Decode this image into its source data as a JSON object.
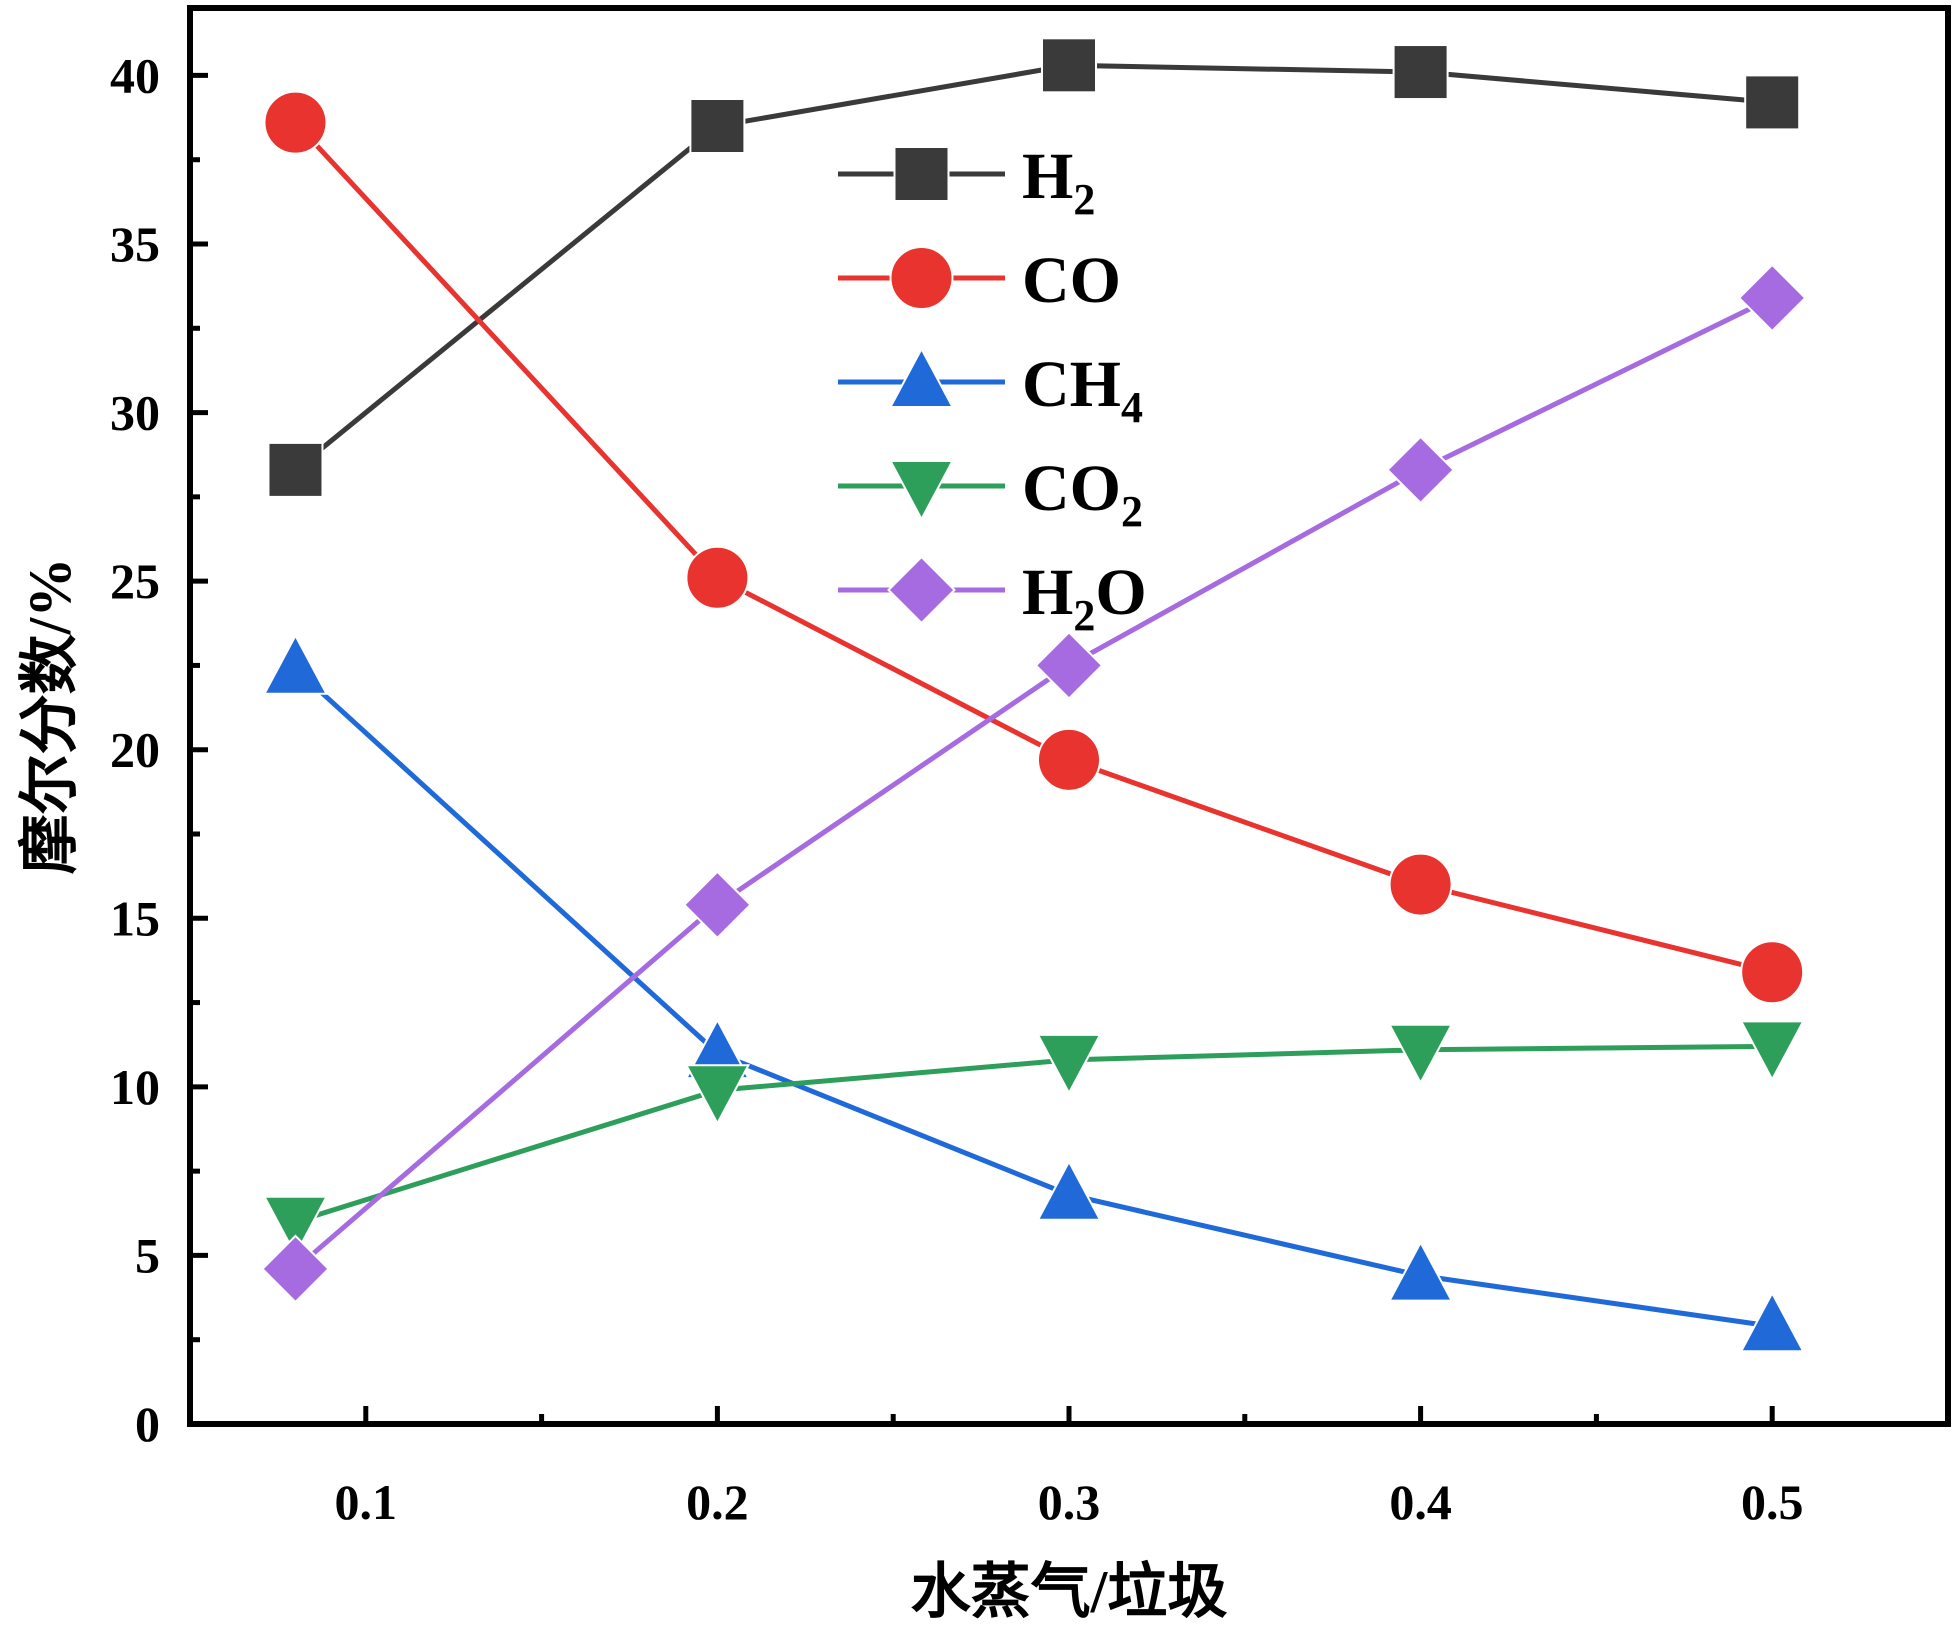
{
  "chart_data": {
    "type": "line",
    "title": "",
    "xlabel": "水蒸气/垃圾",
    "ylabel": "摩尔分数/%",
    "xlim": [
      0.05,
      0.55
    ],
    "ylim": [
      0,
      42
    ],
    "x": [
      0.08,
      0.2,
      0.3,
      0.4,
      0.5
    ],
    "x_ticks": [
      0.1,
      0.2,
      0.3,
      0.4,
      0.5
    ],
    "x_tick_labels": [
      "0.1",
      "0.2",
      "0.3",
      "0.4",
      "0.5"
    ],
    "y_ticks": [
      0,
      5,
      10,
      15,
      20,
      25,
      30,
      35,
      40
    ],
    "y_tick_labels": [
      "0",
      "5",
      "10",
      "15",
      "20",
      "25",
      "30",
      "35",
      "40"
    ],
    "grid": false,
    "legend_position": "top-center",
    "series": [
      {
        "name": "H2",
        "label_main": "H",
        "label_sub": "2",
        "label_tail": "",
        "marker": "square",
        "color": "#3a3a3a",
        "values": [
          28.3,
          38.5,
          40.3,
          40.1,
          39.2
        ]
      },
      {
        "name": "CO",
        "label_main": "CO",
        "label_sub": "",
        "label_tail": "",
        "marker": "circle",
        "color": "#e8332f",
        "values": [
          38.6,
          25.1,
          19.7,
          16.0,
          13.4
        ]
      },
      {
        "name": "CH4",
        "label_main": "CH",
        "label_sub": "4",
        "label_tail": "",
        "marker": "triangle-up",
        "color": "#1f6ad8",
        "values": [
          22.4,
          11.0,
          6.8,
          4.4,
          2.9
        ]
      },
      {
        "name": "CO2",
        "label_main": "CO",
        "label_sub": "2",
        "label_tail": "",
        "marker": "triangle-down",
        "color": "#2e9e5b",
        "values": [
          6.0,
          9.9,
          10.8,
          11.1,
          11.2
        ]
      },
      {
        "name": "H2O",
        "label_main": "H",
        "label_sub": "2",
        "label_tail": "O",
        "marker": "diamond",
        "color": "#a66be0",
        "values": [
          4.6,
          15.4,
          22.5,
          28.3,
          33.4
        ]
      }
    ]
  }
}
